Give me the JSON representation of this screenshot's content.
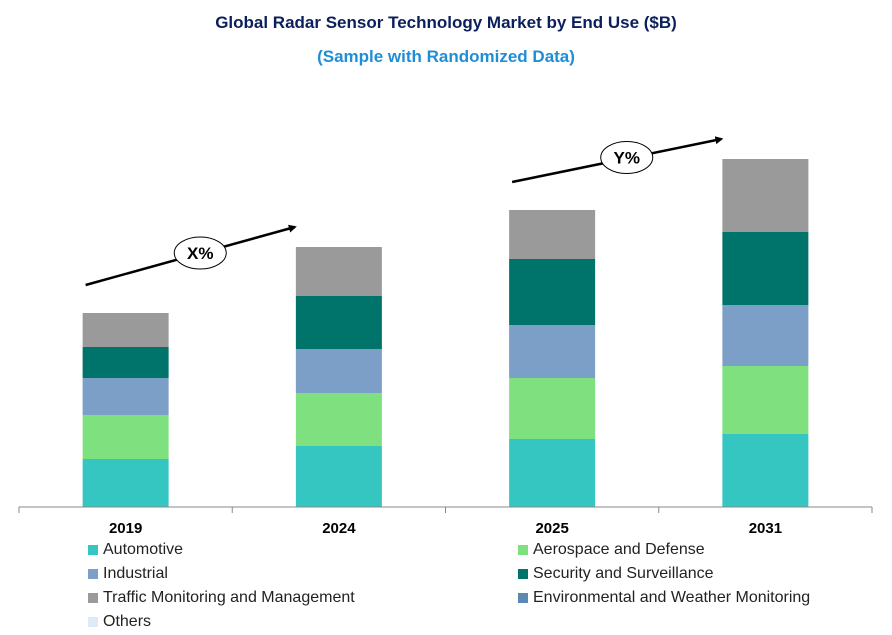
{
  "chart_data": {
    "type": "bar",
    "stacked": true,
    "title": "Global Radar Sensor Technology Market by End Use ($B)",
    "subtitle": "(Sample with Randomized Data)",
    "categories": [
      "2019",
      "2024",
      "2025",
      "2031"
    ],
    "series": [
      {
        "name": "Automotive",
        "color": "#36c6c2",
        "values": [
          48,
          61,
          68,
          73
        ]
      },
      {
        "name": "Aerospace and Defense",
        "color": "#7fe07f",
        "values": [
          44,
          53,
          61,
          68
        ]
      },
      {
        "name": "Industrial",
        "color": "#7c9fc8",
        "values": [
          37,
          44,
          53,
          61
        ]
      },
      {
        "name": "Security and Surveillance",
        "color": "#00736a",
        "values": [
          31,
          53,
          66,
          73
        ]
      },
      {
        "name": "Traffic Monitoring and Management",
        "color": "#9a9a9a",
        "values": [
          34,
          49,
          49,
          73
        ]
      },
      {
        "name": "Environmental and Weather Monitoring",
        "color": "#5c88b4",
        "values": [
          0,
          0,
          0,
          0
        ]
      },
      {
        "name": "Others",
        "color": "#dcebf7",
        "values": [
          0,
          0,
          0,
          0
        ]
      }
    ],
    "ylim": [
      0,
      350
    ],
    "xlabel": "",
    "ylabel": "",
    "legend_position": "bottom",
    "annotations": [
      {
        "label": "X%",
        "from": "2019",
        "to": "2024"
      },
      {
        "label": "Y%",
        "from": "2025",
        "to": "2031"
      }
    ]
  }
}
